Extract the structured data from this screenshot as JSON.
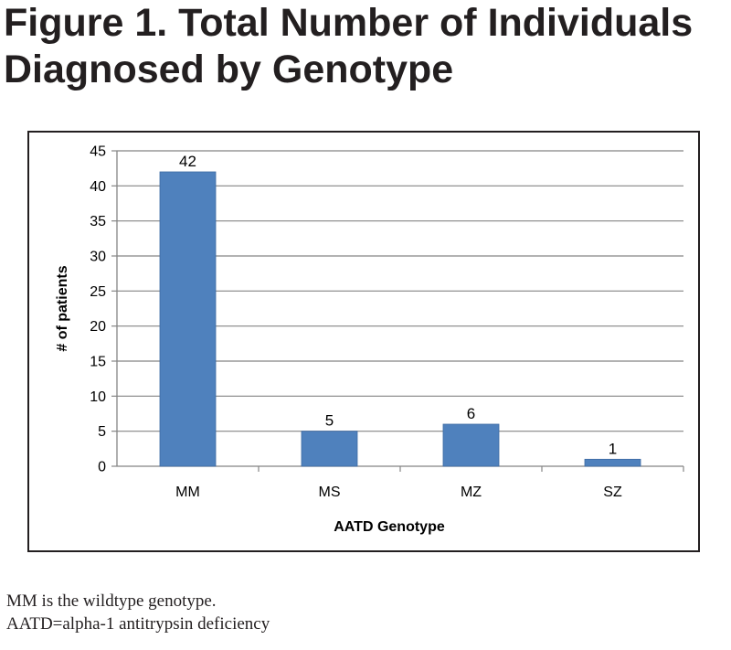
{
  "figure": {
    "title_line1": "Figure 1. Total Number of Individuals",
    "title_line2": "Diagnosed by Genotype"
  },
  "notes": {
    "line1": "MM is the wildtype genotype.",
    "line2": "AATD=alpha-1 antitrypsin deficiency"
  },
  "colors": {
    "bar": "#4f81bd",
    "bar_edge": "#3c6aa3",
    "grid": "#858585",
    "text": "#000000"
  },
  "chart_data": {
    "type": "bar",
    "categories": [
      "MM",
      "MS",
      "MZ",
      "SZ"
    ],
    "values": [
      42,
      5,
      6,
      1
    ],
    "data_labels": [
      "42",
      "5",
      "6",
      "1"
    ],
    "yticks": [
      "0",
      "5",
      "10",
      "15",
      "20",
      "25",
      "30",
      "35",
      "40",
      "45"
    ],
    "ylim": [
      0,
      45
    ],
    "xlabel": "AATD Genotype",
    "ylabel": "# of patients",
    "grid": true,
    "legend": false
  }
}
